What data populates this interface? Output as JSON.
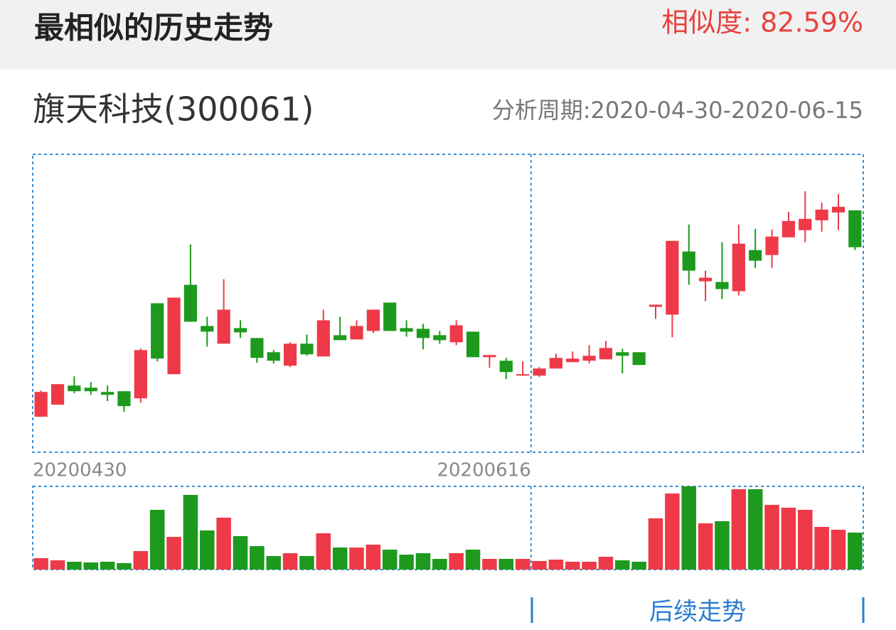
{
  "header": {
    "title": "最相似的历史走势",
    "similarity": "相似度: 82.59%"
  },
  "stock": {
    "name": "旗天科技(300061)",
    "period": "分析周期:2020-04-30-2020-06-15"
  },
  "chart_data": {
    "type": "candlestick",
    "categories": [
      "20200430",
      null,
      null,
      null,
      null,
      null,
      null,
      null,
      null,
      null,
      null,
      null,
      null,
      null,
      null,
      null,
      null,
      null,
      null,
      null,
      null,
      null,
      null,
      null,
      null,
      null,
      null,
      null,
      null,
      null,
      "20200616",
      null,
      null,
      null,
      null,
      null,
      null,
      null,
      null,
      null,
      null,
      null,
      null,
      null,
      null,
      null,
      null,
      null,
      null,
      null
    ],
    "open": [
      50,
      67,
      94,
      91,
      85,
      86,
      76,
      210,
      110,
      236,
      178,
      153,
      175,
      161,
      141,
      122,
      153,
      135,
      165,
      159,
      171,
      211,
      175,
      174,
      165,
      155,
      170,
      134,
      129,
      108,
      108,
      118,
      127,
      129,
      131,
      141,
      141,
      205,
      194,
      283,
      241,
      240,
      227,
      285,
      278,
      303,
      313,
      327,
      338,
      341
    ],
    "high": [
      87,
      96,
      107,
      99,
      94,
      86,
      146,
      210,
      218,
      293,
      191,
      244,
      186,
      161,
      144,
      155,
      166,
      201,
      191,
      186,
      201,
      211,
      186,
      181,
      171,
      186,
      170,
      137,
      133,
      128,
      120,
      139,
      142,
      151,
      157,
      146,
      141,
      208,
      298,
      321,
      256,
      296,
      321,
      315,
      314,
      339,
      368,
      352,
      364,
      341
    ],
    "low": [
      50,
      67,
      83,
      81,
      72,
      57,
      70,
      128,
      110,
      184,
      149,
      153,
      161,
      126,
      125,
      120,
      136,
      135,
      158,
      159,
      168,
      171,
      163,
      145,
      153,
      151,
      134,
      119,
      103,
      108,
      106,
      118,
      127,
      125,
      131,
      111,
      123,
      188,
      162,
      236,
      213,
      216,
      221,
      260,
      260,
      303,
      296,
      311,
      313,
      285
    ],
    "close": [
      85,
      96,
      86,
      86,
      81,
      65,
      144,
      132,
      218,
      184,
      170,
      201,
      169,
      133,
      129,
      153,
      138,
      186,
      158,
      178,
      201,
      171,
      170,
      161,
      158,
      179,
      134,
      137,
      113,
      110,
      118,
      133,
      132,
      136,
      147,
      136,
      123,
      208,
      298,
      256,
      246,
      230,
      294,
      270,
      304,
      326,
      329,
      342,
      346,
      289
    ],
    "volume": [
      16,
      13,
      11,
      10,
      11,
      9,
      26,
      84,
      46,
      105,
      55,
      73,
      47,
      33,
      19,
      23,
      19,
      51,
      31,
      31,
      35,
      28,
      21,
      23,
      15,
      23,
      28,
      15,
      15,
      15,
      12,
      14,
      11,
      11,
      18,
      13,
      11,
      72,
      107,
      117,
      65,
      68,
      113,
      113,
      91,
      87,
      84,
      60,
      56,
      52
    ],
    "ylim": [
      0,
      420
    ],
    "volume_ylim": [
      0,
      117
    ],
    "up_color": "#ee3a48",
    "down_color": "#1d9a1d",
    "frame_color": "#3a8fd8"
  },
  "footer": {
    "label": "后续走势"
  }
}
